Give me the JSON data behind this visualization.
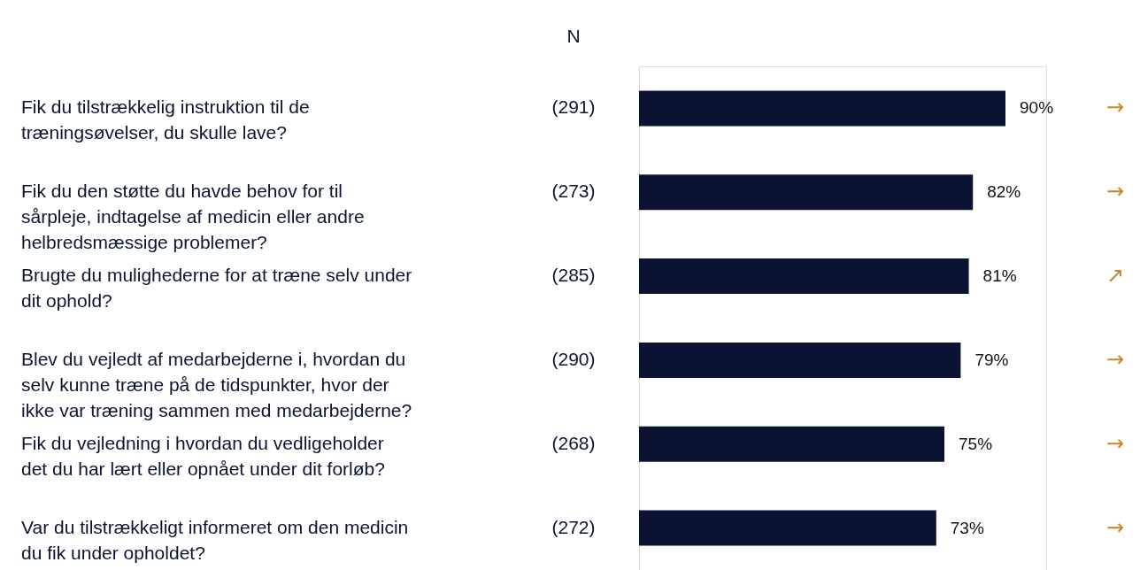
{
  "chart_data": {
    "type": "bar",
    "orientation": "horizontal",
    "categories": [
      "Fik du tilstrækkelig instruktion til de træningsøvelser, du skulle lave?",
      "Fik du den støtte du havde behov for til sårpleje, indtagelse af medicin eller andre helbredsmæssige problemer?",
      "Brugte du mulighederne for at træne selv under dit ophold?",
      "Blev du vejledt af medarbejderne i, hvordan du selv kunne træne på de tidspunkter, hvor der ikke var træning sammen med medarbejderne?",
      "Fik du vejledning i hvordan du vedligeholder det du har lært eller opnået under dit forløb?",
      "Var du tilstrækkeligt informeret om den medicin du fik under opholdet?"
    ],
    "values": [
      90,
      82,
      81,
      79,
      75,
      73
    ],
    "value_labels": [
      "90%",
      "82%",
      "81%",
      "79%",
      "75%",
      "73%"
    ],
    "color": "#0a1432",
    "xlim": [
      0,
      100
    ],
    "tick_labels": "y",
    "annotations": [
      "N",
      "(291)",
      "(273)",
      "(285)",
      "(290)",
      "(268)",
      "(272)",
      "→",
      "→",
      "↗",
      "→",
      "→",
      "→"
    ]
  }
}
